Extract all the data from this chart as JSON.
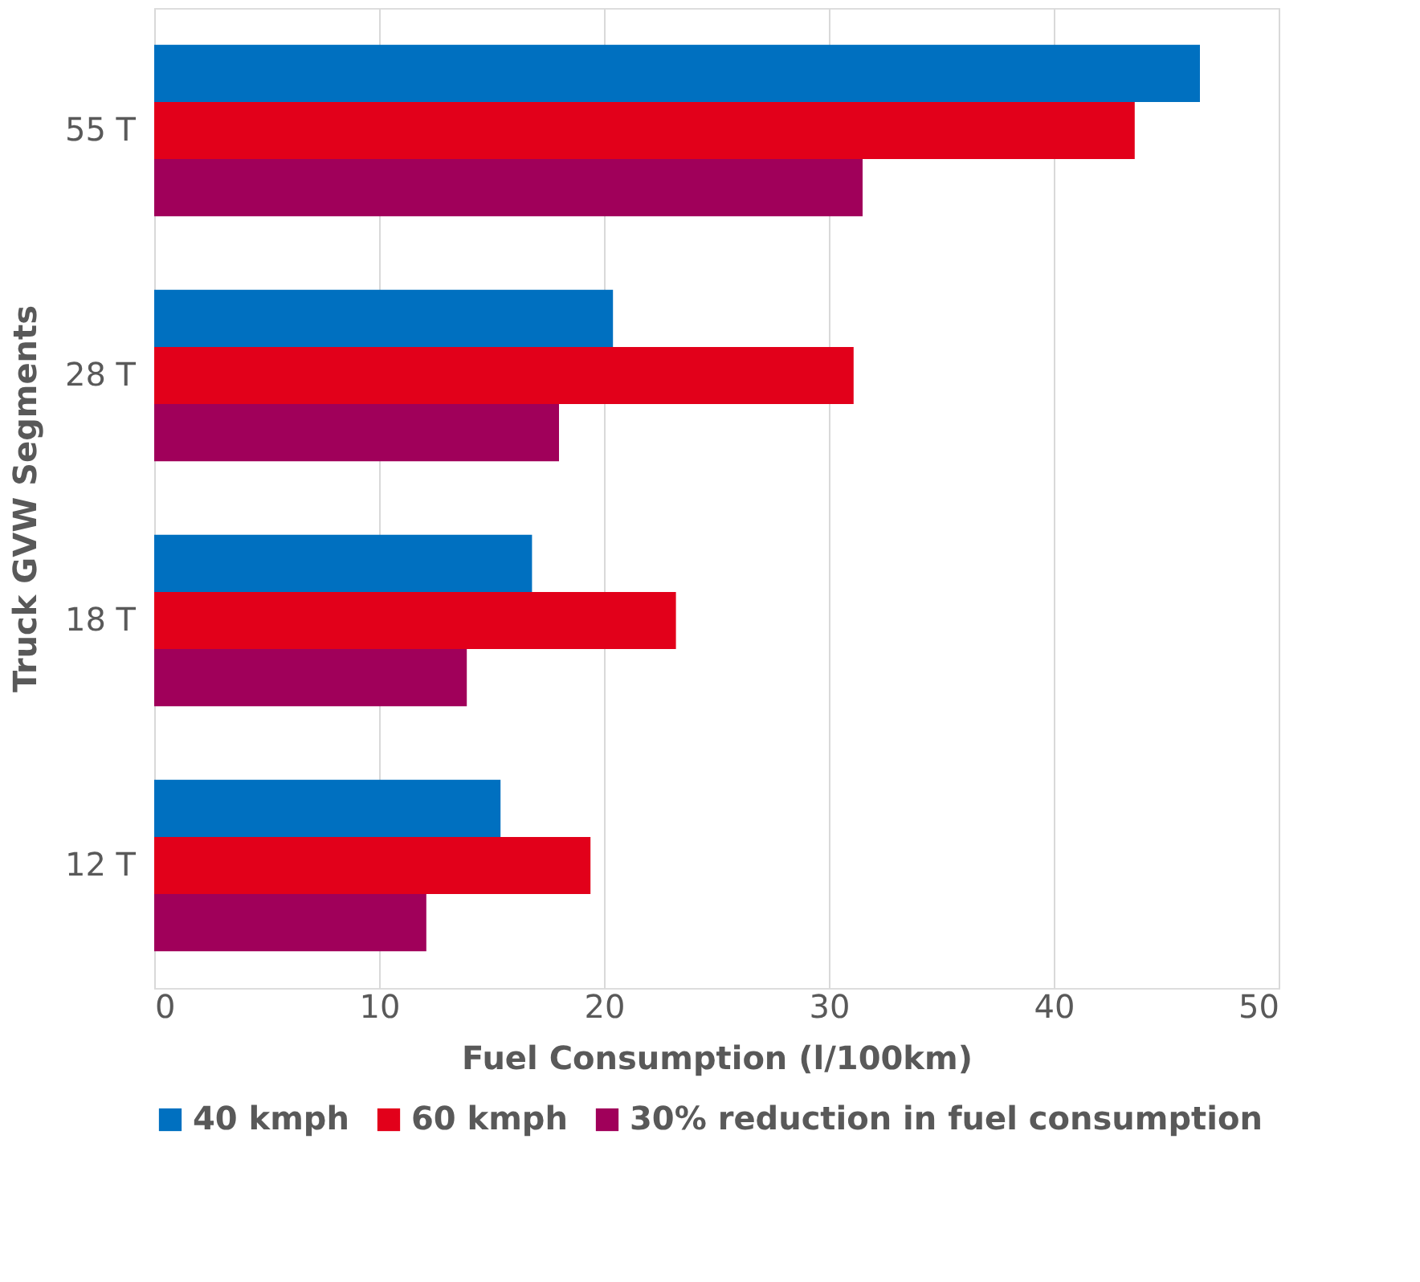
{
  "chart_data": {
    "type": "bar",
    "orientation": "horizontal",
    "xlabel": "Fuel Consumption (l/100km)",
    "ylabel": "Truck GVW Segments",
    "categories": [
      "55 T",
      "28 T",
      "18 T",
      "12 T"
    ],
    "series": [
      {
        "name": "40 kmph",
        "color": "#0070c0",
        "values": [
          46.5,
          20.4,
          16.8,
          15.4
        ]
      },
      {
        "name": "60 kmph",
        "color": "#e2001a",
        "values": [
          43.6,
          31.1,
          23.2,
          19.4
        ]
      },
      {
        "name": "30% reduction in fuel consumption",
        "color": "#a0005a",
        "values": [
          31.5,
          18.0,
          13.9,
          12.1
        ]
      }
    ],
    "xlim": [
      0,
      50
    ],
    "xticks": [
      0,
      10,
      20,
      30,
      40,
      50
    ],
    "grid": "x",
    "legend": "bottom"
  }
}
